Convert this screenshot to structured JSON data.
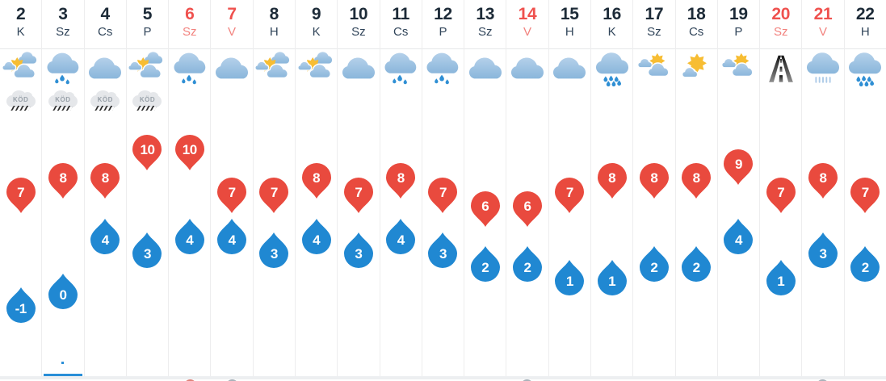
{
  "labels": {
    "fog_badge": "KÖD"
  },
  "colors": {
    "max_marker": "#e94a3e",
    "min_marker": "#2088d2",
    "marker_text": "#ffffff",
    "day_number": "#1d2b38",
    "day_abbrev": "#31455a",
    "holiday_number": "#ef514e",
    "holiday_abbrev": "#f2827e",
    "grid_line": "#ededee",
    "header_line": "#e6e7e9",
    "footer_band": "#edeff1",
    "selected_indicator": "#2a8fd8",
    "cloud_top": "#b4d0ea",
    "cloud_bottom": "#8ab6db",
    "sun": "#f7bd33",
    "raindrop": "#2f8fd4",
    "rain_streak": "#aecbe8",
    "fog_badge_bg": "#e5e7ea",
    "fog_badge_text": "#9aa2aa",
    "road_dark": "#141414",
    "road_light": "#8e8e8e"
  },
  "days": [
    {
      "date": "2",
      "dow": "K",
      "holiday": false,
      "icon": "partly",
      "fog": true,
      "max": 7,
      "min": -1,
      "selected": false
    },
    {
      "date": "3",
      "dow": "Sz",
      "holiday": false,
      "icon": "drizzle",
      "fog": true,
      "max": 8,
      "min": 0,
      "selected": true
    },
    {
      "date": "4",
      "dow": "Cs",
      "holiday": false,
      "icon": "cloud",
      "fog": true,
      "max": 8,
      "min": 4,
      "selected": false
    },
    {
      "date": "5",
      "dow": "P",
      "holiday": false,
      "icon": "partly",
      "fog": true,
      "max": 10,
      "min": 3,
      "selected": false
    },
    {
      "date": "6",
      "dow": "Sz",
      "holiday": true,
      "icon": "drizzle",
      "fog": false,
      "max": 10,
      "min": 4,
      "selected": false
    },
    {
      "date": "7",
      "dow": "V",
      "holiday": true,
      "icon": "cloud",
      "fog": false,
      "max": 7,
      "min": 4,
      "selected": false
    },
    {
      "date": "8",
      "dow": "H",
      "holiday": false,
      "icon": "partly",
      "fog": false,
      "max": 7,
      "min": 3,
      "selected": false
    },
    {
      "date": "9",
      "dow": "K",
      "holiday": false,
      "icon": "partly",
      "fog": false,
      "max": 8,
      "min": 4,
      "selected": false
    },
    {
      "date": "10",
      "dow": "Sz",
      "holiday": false,
      "icon": "cloud",
      "fog": false,
      "max": 7,
      "min": 3,
      "selected": false
    },
    {
      "date": "11",
      "dow": "Cs",
      "holiday": false,
      "icon": "drizzle",
      "fog": false,
      "max": 8,
      "min": 4,
      "selected": false
    },
    {
      "date": "12",
      "dow": "P",
      "holiday": false,
      "icon": "drizzle",
      "fog": false,
      "max": 7,
      "min": 3,
      "selected": false
    },
    {
      "date": "13",
      "dow": "Sz",
      "holiday": false,
      "icon": "cloud",
      "fog": false,
      "max": 6,
      "min": 2,
      "selected": false
    },
    {
      "date": "14",
      "dow": "V",
      "holiday": true,
      "icon": "cloud",
      "fog": false,
      "max": 6,
      "min": 2,
      "selected": false
    },
    {
      "date": "15",
      "dow": "H",
      "holiday": false,
      "icon": "cloud",
      "fog": false,
      "max": 7,
      "min": 1,
      "selected": false
    },
    {
      "date": "16",
      "dow": "K",
      "holiday": false,
      "icon": "rain",
      "fog": false,
      "max": 8,
      "min": 1,
      "selected": false
    },
    {
      "date": "17",
      "dow": "Sz",
      "holiday": false,
      "icon": "partly2",
      "fog": false,
      "max": 8,
      "min": 2,
      "selected": false
    },
    {
      "date": "18",
      "dow": "Cs",
      "holiday": false,
      "icon": "sunny",
      "fog": false,
      "max": 8,
      "min": 2,
      "selected": false
    },
    {
      "date": "19",
      "dow": "P",
      "holiday": false,
      "icon": "partly2",
      "fog": false,
      "max": 9,
      "min": 4,
      "selected": false
    },
    {
      "date": "20",
      "dow": "Sz",
      "holiday": true,
      "icon": "highway",
      "fog": false,
      "max": 7,
      "min": 1,
      "selected": false
    },
    {
      "date": "21",
      "dow": "V",
      "holiday": true,
      "icon": "showers",
      "fog": false,
      "max": 8,
      "min": 3,
      "selected": false
    },
    {
      "date": "22",
      "dow": "H",
      "holiday": false,
      "icon": "rain",
      "fog": false,
      "max": 7,
      "min": 2,
      "selected": false
    }
  ],
  "footer": {
    "peeks": [
      {
        "date": "6",
        "color": "#e0827a"
      },
      {
        "date": "7",
        "color": "#a9b2ba"
      },
      {
        "date": "14",
        "color": "#a9b2ba"
      },
      {
        "date": "21",
        "color": "#a9b2ba"
      }
    ]
  }
}
